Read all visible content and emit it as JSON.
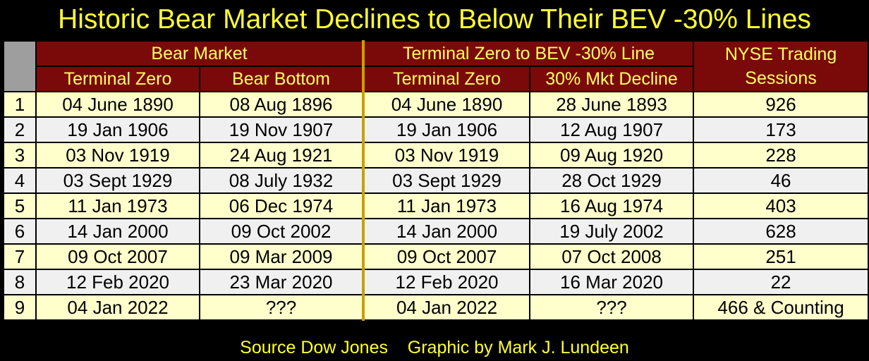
{
  "title": "Historic Bear Market Declines to Below Their BEV -30% Lines",
  "source": "Source Dow Jones    Graphic by Mark J. Lundeen",
  "header": {
    "group_bear_market": "Bear Market",
    "group_terminal": "Terminal Zero to BEV -30% Line",
    "group_nyse_line1": "NYSE Trading",
    "group_nyse_line2": "Sessions",
    "col_terminal_zero": "Terminal Zero",
    "col_bear_bottom": "Bear Bottom",
    "col_terminal_zero_2": "Terminal Zero",
    "col_mkt_decline": "30% Mkt Decline"
  },
  "rows": [
    {
      "num": "1",
      "tz": "04 June 1890",
      "bottom": "08 Aug 1896",
      "tz2": "04 June 1890",
      "decline": "28 June 1893",
      "sessions": "926"
    },
    {
      "num": "2",
      "tz": "19 Jan 1906",
      "bottom": "19 Nov 1907",
      "tz2": "19 Jan 1906",
      "decline": "12 Aug 1907",
      "sessions": "173"
    },
    {
      "num": "3",
      "tz": "03 Nov 1919",
      "bottom": "24 Aug 1921",
      "tz2": "03 Nov 1919",
      "decline": "09 Aug 1920",
      "sessions": "228"
    },
    {
      "num": "4",
      "tz": "03 Sept 1929",
      "bottom": "08 July 1932",
      "tz2": "03 Sept 1929",
      "decline": "28 Oct 1929",
      "sessions": "46"
    },
    {
      "num": "5",
      "tz": "11 Jan 1973",
      "bottom": "06 Dec 1974",
      "tz2": "11 Jan 1973",
      "decline": "16 Aug 1974",
      "sessions": "403"
    },
    {
      "num": "6",
      "tz": "14 Jan 2000",
      "bottom": "09 Oct 2002",
      "tz2": "14 Jan 2000",
      "decline": "19 July 2002",
      "sessions": "628"
    },
    {
      "num": "7",
      "tz": "09 Oct 2007",
      "bottom": "09 Mar 2009",
      "tz2": "09 Oct 2007",
      "decline": "07 Oct 2008",
      "sessions": "251"
    },
    {
      "num": "8",
      "tz": "12 Feb 2020",
      "bottom": "23 Mar 2020",
      "tz2": "12 Feb 2020",
      "decline": "16 Mar 2020",
      "sessions": "22"
    },
    {
      "num": "9",
      "tz": "04 Jan 2022",
      "bottom": "???",
      "tz2": "04 Jan 2022",
      "decline": "???",
      "sessions": "466 & Counting"
    }
  ],
  "colors": {
    "title_text": "#FFFF33",
    "header_bg": "#7A0A0A",
    "header_text": "#FFFF66",
    "row_odd": "#FFFFCC",
    "row_even": "#F0F0F0",
    "divider": "#C8A000"
  }
}
